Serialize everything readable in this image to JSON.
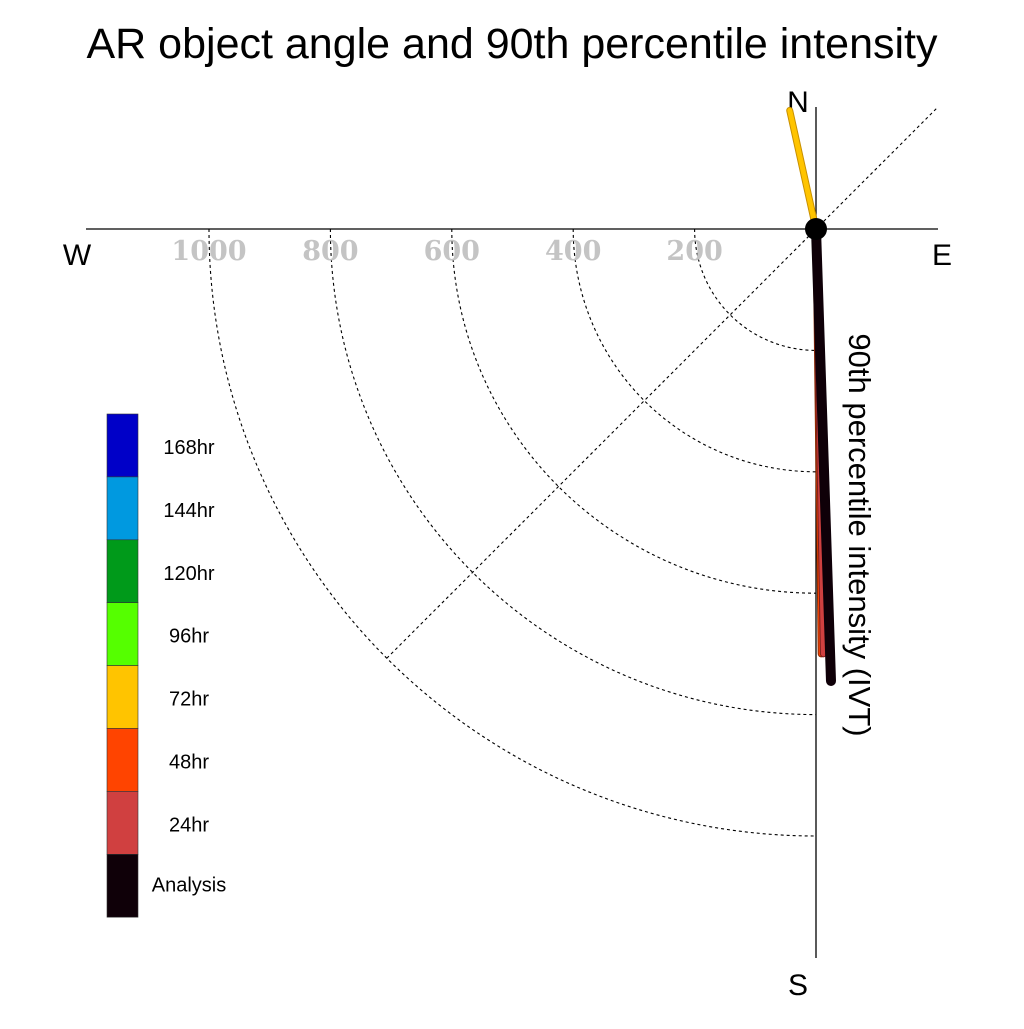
{
  "chart_data": {
    "type": "polar-vector",
    "title": "AR object angle and 90th percentile intensity",
    "radial_axis_label": "90th percentile intensity (IVT)",
    "directions": {
      "north": "N",
      "south": "S",
      "east": "E",
      "west": "W"
    },
    "radial_ticks": [
      200,
      400,
      600,
      800,
      1000
    ],
    "radial_tick_labels": [
      "200",
      "400",
      "600",
      "800",
      "1000"
    ],
    "radial_max": 1000,
    "grid": true,
    "legend_position": "left",
    "legend": [
      {
        "label": "168hr",
        "color": "#0000c8"
      },
      {
        "label": "144hr",
        "color": "#0099e0"
      },
      {
        "label": "120hr",
        "color": "#009a1a"
      },
      {
        "label": "96hr",
        "color": "#55ff00"
      },
      {
        "label": "72hr",
        "color": "#ffc400"
      },
      {
        "label": "48hr",
        "color": "#ff4400"
      },
      {
        "label": "24hr",
        "color": "#d04040"
      },
      {
        "label": "Analysis",
        "color": "#0f0008"
      }
    ],
    "series": [
      {
        "name": "72hr",
        "angle_deg": -12.5,
        "intensity": 200,
        "color": "#ffc400",
        "outline": "#c89000"
      },
      {
        "name": "48hr",
        "angle_deg": 179.3,
        "intensity": 700,
        "color": "#ff4400",
        "outline": "#8b2a00"
      },
      {
        "name": "24hr",
        "angle_deg": 179.0,
        "intensity": 700,
        "color": "#d04040",
        "outline": "#7a1e1e"
      },
      {
        "name": "Analysis",
        "angle_deg": 178.1,
        "intensity": 745,
        "color": "#0f0008",
        "outline": "#0f0008"
      }
    ]
  }
}
